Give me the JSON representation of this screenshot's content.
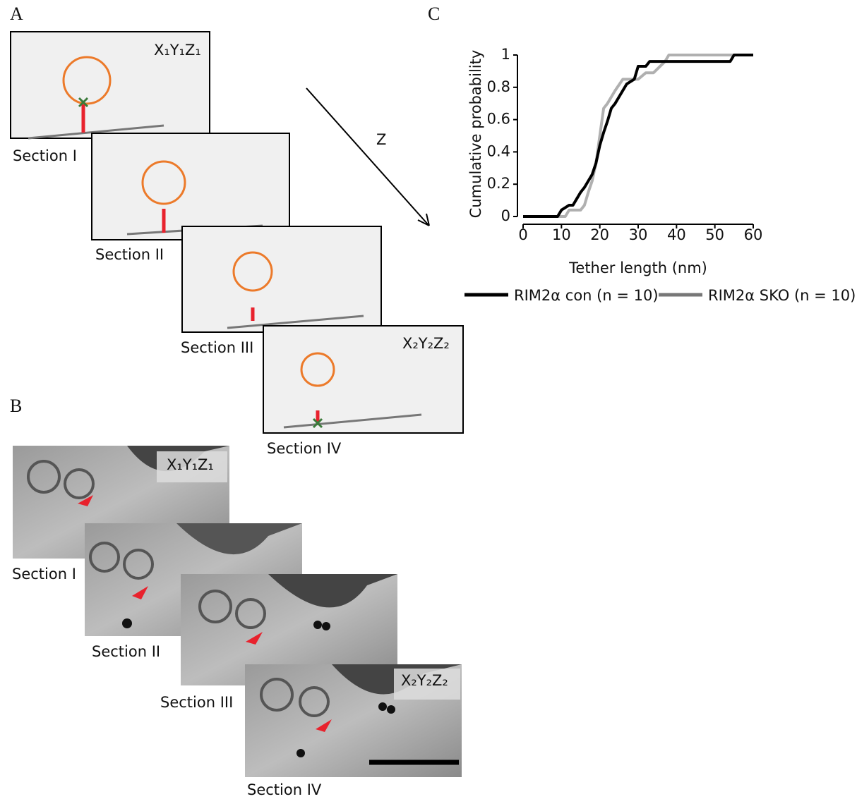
{
  "panels": {
    "a": "A",
    "b": "B",
    "c": "C"
  },
  "diagram": {
    "coords_start": "X₁Y₁Z₁",
    "coords_end": "X₂Y₂Z₂",
    "axis": "Z",
    "sections": [
      "Section I",
      "Section II",
      "Section III",
      "Section IV"
    ]
  },
  "micrographs": {
    "coords_start": "X₁Y₁Z₁",
    "coords_end": "X₂Y₂Z₂",
    "sections": [
      "Section I",
      "Section II",
      "Section III",
      "Section IV"
    ]
  },
  "chart_data": {
    "type": "line",
    "x_label": "Tether length (nm)",
    "y_label": "Cumulative probability",
    "xlim": [
      0,
      60
    ],
    "ylim": [
      0,
      1
    ],
    "xticks": [
      0,
      10,
      20,
      30,
      40,
      50,
      60
    ],
    "yticks": [
      0,
      0.2,
      0.4,
      0.6,
      0.8,
      1
    ],
    "legend": "bottom",
    "series": [
      {
        "name": "RIM2α con (n = 10)",
        "color": "#000000",
        "x": [
          0,
          9,
          10,
          12,
          13,
          14,
          15,
          16,
          17,
          18,
          19,
          20,
          21,
          22,
          23,
          24,
          25,
          26,
          27,
          29,
          30,
          32,
          33,
          34,
          54,
          55,
          60
        ],
        "values": [
          0,
          0,
          0.04,
          0.07,
          0.07,
          0.11,
          0.15,
          0.18,
          0.22,
          0.26,
          0.33,
          0.44,
          0.52,
          0.59,
          0.67,
          0.7,
          0.74,
          0.78,
          0.82,
          0.85,
          0.93,
          0.93,
          0.96,
          0.96,
          0.96,
          1,
          1
        ]
      },
      {
        "name": "RIM2α SKO (n = 10)",
        "color": "#b0b0b0",
        "x": [
          0,
          11,
          12,
          15,
          16,
          17,
          18,
          19,
          20,
          21,
          22,
          23,
          24,
          26,
          28,
          30,
          32,
          34,
          37,
          38,
          60
        ],
        "values": [
          0,
          0,
          0.04,
          0.04,
          0.07,
          0.15,
          0.22,
          0.33,
          0.5,
          0.67,
          0.7,
          0.74,
          0.78,
          0.85,
          0.85,
          0.85,
          0.89,
          0.89,
          0.96,
          1,
          1
        ]
      }
    ]
  }
}
